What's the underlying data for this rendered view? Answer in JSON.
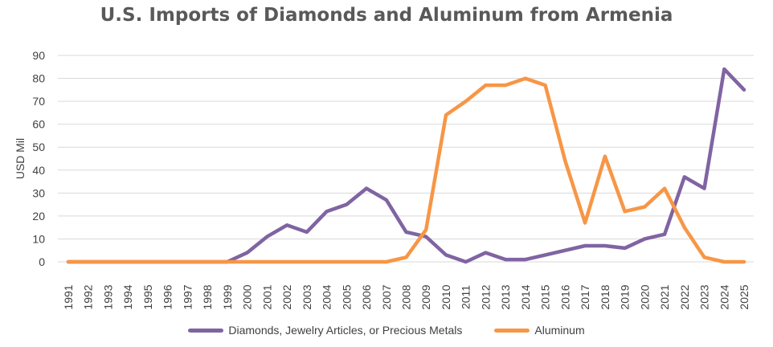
{
  "chart_data": {
    "type": "line",
    "title": "U.S. Imports of Diamonds and Aluminum from Armenia",
    "ylabel": "USD Mil",
    "xlabel": "",
    "ylim": [
      0,
      90
    ],
    "yticks": [
      0,
      10,
      20,
      30,
      40,
      50,
      60,
      70,
      80,
      90
    ],
    "grid": true,
    "legend_position": "bottom",
    "categories": [
      "1991",
      "1992",
      "1993",
      "1994",
      "1995",
      "1996",
      "1997",
      "1998",
      "1999",
      "2000",
      "2001",
      "2002",
      "2003",
      "2004",
      "2005",
      "2006",
      "2007",
      "2008",
      "2009",
      "2010",
      "2011",
      "2012",
      "2013",
      "2014",
      "2015",
      "2016",
      "2017",
      "2018",
      "2019",
      "2020",
      "2021",
      "2022",
      "2023",
      "2024",
      "2025"
    ],
    "series": [
      {
        "name": "Diamonds, Jewelry Articles, or Precious Metals",
        "color": "#8064a2",
        "values": [
          0,
          0,
          0,
          0,
          0,
          0,
          0,
          0,
          0,
          4,
          11,
          16,
          13,
          22,
          25,
          32,
          27,
          13,
          11,
          3,
          0,
          4,
          1,
          1,
          3,
          5,
          7,
          7,
          6,
          10,
          12,
          37,
          32,
          84,
          75
        ]
      },
      {
        "name": "Aluminum",
        "color": "#f79646",
        "values": [
          0,
          0,
          0,
          0,
          0,
          0,
          0,
          0,
          0,
          0,
          0,
          0,
          0,
          0,
          0,
          0,
          0,
          2,
          14,
          64,
          70,
          77,
          77,
          80,
          77,
          44,
          17,
          46,
          22,
          24,
          32,
          15,
          2,
          0,
          0
        ]
      }
    ]
  }
}
